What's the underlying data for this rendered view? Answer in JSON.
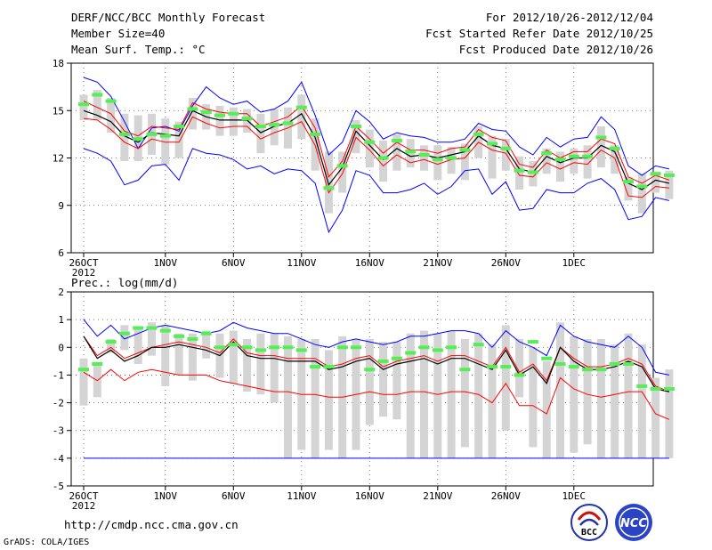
{
  "header": {
    "title": "DERF/NCC/BCC Monthly Forecast",
    "member_size": "Member Size=40",
    "variable": "Mean Surf. Temp.: °C",
    "period": "For 2012/10/26-2012/12/04",
    "started": "Fcst Started Refer Date 2012/10/25",
    "produced": "Fcst Produced Date 2012/10/26"
  },
  "footer": {
    "url": "http://cmdp.ncc.cma.gov.cn",
    "grads": "GrADS: COLA/IGES",
    "logo_bcc": "BCC",
    "logo_ncc": "NCC"
  },
  "colors": {
    "blue": "#0000ff",
    "red": "#ff0000",
    "black": "#000000",
    "green": "#55ee55",
    "box": "#d4d4d4",
    "grid": "#555555"
  },
  "chart_data": [
    {
      "type": "line",
      "title": "Mean Surf. Temp.: °C",
      "ylim": [
        6,
        18
      ],
      "yticks": [
        6,
        9,
        12,
        15,
        18
      ],
      "x_ticks": [
        {
          "day": 0,
          "label": "26OCT",
          "sub": "2012"
        },
        {
          "day": 6,
          "label": "1NOV"
        },
        {
          "day": 11,
          "label": "6NOV"
        },
        {
          "day": 16,
          "label": "11NOV"
        },
        {
          "day": 21,
          "label": "16NOV"
        },
        {
          "day": 26,
          "label": "21NOV"
        },
        {
          "day": 31,
          "label": "26NOV"
        },
        {
          "day": 36,
          "label": "1DEC"
        }
      ],
      "series": [
        {
          "name": "max",
          "color": "blue",
          "values": [
            17.1,
            16.8,
            15.9,
            14.3,
            12.6,
            13.9,
            14.0,
            13.7,
            15.3,
            16.5,
            15.8,
            15.4,
            15.6,
            14.9,
            15.1,
            15.6,
            16.8,
            14.7,
            12.2,
            13.0,
            15.0,
            14.3,
            13.2,
            13.6,
            13.4,
            13.3,
            13.0,
            13.0,
            13.2,
            14.2,
            13.8,
            13.7,
            12.7,
            12.2,
            13.3,
            12.7,
            13.2,
            13.3,
            14.6,
            13.8,
            11.5,
            10.9,
            11.5,
            11.3
          ]
        },
        {
          "name": "upper",
          "color": "red",
          "values": [
            15.6,
            15.2,
            14.8,
            13.7,
            13.4,
            14.0,
            13.9,
            13.8,
            15.5,
            15.1,
            14.9,
            14.8,
            14.8,
            14.0,
            14.3,
            14.6,
            15.3,
            13.9,
            10.8,
            11.8,
            14.0,
            13.2,
            12.3,
            13.0,
            12.5,
            12.5,
            12.3,
            12.6,
            12.7,
            13.8,
            13.3,
            13.1,
            11.6,
            11.4,
            12.5,
            12.0,
            12.4,
            12.4,
            13.2,
            12.9,
            10.8,
            10.4,
            10.9,
            10.6
          ]
        },
        {
          "name": "median",
          "color": "black",
          "values": [
            15.0,
            14.7,
            14.3,
            13.4,
            13.0,
            13.6,
            13.5,
            13.4,
            15.0,
            14.6,
            14.4,
            14.4,
            14.4,
            13.6,
            14.0,
            14.2,
            14.8,
            13.3,
            10.3,
            11.4,
            13.7,
            12.8,
            11.9,
            12.6,
            12.1,
            12.2,
            12.0,
            12.2,
            12.4,
            13.4,
            12.8,
            12.6,
            11.3,
            11.1,
            12.1,
            11.7,
            12.0,
            12.0,
            12.8,
            12.4,
            10.4,
            10.0,
            10.6,
            10.4
          ]
        },
        {
          "name": "lower",
          "color": "red",
          "values": [
            14.5,
            14.4,
            13.8,
            13.0,
            12.6,
            13.2,
            13.0,
            13.0,
            14.6,
            14.2,
            13.9,
            14.0,
            14.0,
            13.2,
            13.6,
            13.9,
            14.3,
            12.8,
            9.8,
            11.0,
            13.3,
            12.5,
            11.5,
            12.2,
            11.7,
            11.9,
            11.6,
            11.9,
            12.0,
            13.0,
            12.5,
            12.3,
            10.9,
            10.8,
            11.7,
            11.3,
            11.7,
            11.6,
            12.5,
            12.0,
            9.6,
            9.5,
            10.2,
            10.1
          ]
        },
        {
          "name": "min",
          "color": "blue",
          "values": [
            12.6,
            12.3,
            11.8,
            10.3,
            10.6,
            11.5,
            11.6,
            10.6,
            12.6,
            12.3,
            12.2,
            11.9,
            11.3,
            11.5,
            11.0,
            11.3,
            11.2,
            10.4,
            7.3,
            8.7,
            11.2,
            10.9,
            9.8,
            9.8,
            10.0,
            10.4,
            9.7,
            10.2,
            11.2,
            11.3,
            9.7,
            10.5,
            8.7,
            8.8,
            10.0,
            9.8,
            9.8,
            10.4,
            10.7,
            10.0,
            8.1,
            8.3,
            9.5,
            9.3
          ]
        },
        {
          "name": "observed",
          "color": "green",
          "values": [
            15.4,
            16.0,
            15.6,
            13.5,
            13.2,
            13.5,
            13.4,
            14.0,
            15.1,
            14.9,
            14.7,
            14.8,
            14.5,
            14.0,
            14.1,
            14.2,
            15.2,
            13.5,
            10.1,
            11.5,
            14.0,
            13.0,
            12.0,
            13.1,
            12.4,
            12.2,
            11.9,
            12.0,
            12.5,
            13.5,
            12.9,
            12.6,
            11.2,
            11.1,
            12.3,
            11.9,
            12.1,
            12.1,
            13.3,
            12.6,
            10.5,
            10.2,
            11.0,
            10.9
          ]
        }
      ],
      "box_low": [
        14.4,
        14.4,
        13.6,
        11.8,
        11.8,
        12.2,
        11.6,
        12.0,
        13.8,
        13.8,
        13.4,
        13.4,
        13.6,
        12.3,
        12.8,
        12.6,
        13.2,
        11.2,
        8.5,
        9.8,
        12.3,
        11.4,
        10.5,
        11.2,
        11.4,
        11.2,
        10.6,
        11.0,
        10.6,
        12.0,
        10.7,
        11.2,
        10.0,
        10.2,
        11.0,
        10.5,
        11.0,
        10.7,
        11.4,
        11.0,
        9.3,
        8.5,
        9.8,
        9.4
      ],
      "box_high": [
        16.0,
        16.3,
        15.8,
        14.8,
        14.7,
        14.8,
        14.5,
        14.3,
        15.8,
        15.4,
        15.3,
        15.2,
        15.1,
        14.8,
        15.1,
        15.2,
        16.0,
        14.5,
        12.4,
        12.4,
        14.4,
        13.8,
        13.1,
        13.5,
        13.2,
        12.8,
        12.8,
        12.7,
        12.9,
        14.0,
        13.4,
        13.2,
        12.1,
        11.8,
        12.6,
        12.4,
        12.6,
        12.8,
        14.0,
        12.8,
        10.8,
        11.0,
        11.1,
        11.2
      ]
    },
    {
      "type": "line",
      "title": "Prec.: log(mm/d)",
      "ylim": [
        -5,
        2
      ],
      "yticks": [
        -5,
        -4,
        -3,
        -2,
        -1,
        0,
        1,
        2
      ],
      "x_ticks": [
        {
          "day": 0,
          "label": "26OCT",
          "sub": "2012"
        },
        {
          "day": 6,
          "label": "1NOV"
        },
        {
          "day": 11,
          "label": "6NOV"
        },
        {
          "day": 16,
          "label": "11NOV"
        },
        {
          "day": 21,
          "label": "16NOV"
        },
        {
          "day": 26,
          "label": "21NOV"
        },
        {
          "day": 31,
          "label": "26NOV"
        },
        {
          "day": 36,
          "label": "1DEC"
        }
      ],
      "series": [
        {
          "name": "max",
          "color": "blue",
          "values": [
            1.0,
            0.4,
            0.8,
            0.3,
            0.5,
            0.7,
            0.8,
            0.7,
            0.6,
            0.5,
            0.6,
            0.9,
            0.7,
            0.6,
            0.5,
            0.5,
            0.3,
            0.1,
            0.0,
            0.2,
            0.3,
            0.2,
            0.1,
            0.2,
            0.4,
            0.4,
            0.5,
            0.6,
            0.6,
            0.5,
            0.0,
            0.6,
            0.2,
            0.0,
            -0.3,
            0.8,
            0.4,
            0.2,
            0.1,
            0.0,
            0.4,
            0.0,
            -0.9,
            -1.0
          ]
        },
        {
          "name": "mean",
          "color": "red",
          "values": [
            0.4,
            -0.3,
            0.0,
            -0.4,
            -0.2,
            0.0,
            0.1,
            0.2,
            0.1,
            0.0,
            -0.2,
            0.3,
            -0.2,
            -0.3,
            -0.3,
            -0.4,
            -0.4,
            -0.4,
            -0.7,
            -0.6,
            -0.4,
            -0.3,
            -0.7,
            -0.5,
            -0.4,
            -0.3,
            -0.5,
            -0.3,
            -0.3,
            -0.5,
            -0.7,
            0.0,
            -0.9,
            -0.6,
            -1.2,
            0.0,
            -0.4,
            -0.7,
            -0.7,
            -0.6,
            -0.4,
            -0.6,
            -1.4,
            -1.6
          ]
        },
        {
          "name": "median",
          "color": "black",
          "values": [
            0.4,
            -0.4,
            -0.1,
            -0.5,
            -0.3,
            0.0,
            0.0,
            0.1,
            0.0,
            -0.1,
            -0.3,
            0.2,
            -0.3,
            -0.4,
            -0.4,
            -0.5,
            -0.5,
            -0.5,
            -0.8,
            -0.7,
            -0.5,
            -0.4,
            -0.8,
            -0.6,
            -0.5,
            -0.4,
            -0.6,
            -0.4,
            -0.4,
            -0.6,
            -0.8,
            -0.1,
            -1.0,
            -0.7,
            -1.3,
            0.0,
            -0.5,
            -0.8,
            -0.8,
            -0.7,
            -0.5,
            -0.7,
            -1.5,
            -1.6
          ]
        },
        {
          "name": "lower",
          "color": "red",
          "values": [
            -0.9,
            -1.2,
            -0.8,
            -1.2,
            -0.9,
            -0.8,
            -0.9,
            -1.0,
            -1.0,
            -1.0,
            -1.2,
            -1.3,
            -1.4,
            -1.5,
            -1.6,
            -1.6,
            -1.7,
            -1.7,
            -1.8,
            -1.8,
            -1.7,
            -1.6,
            -1.7,
            -1.7,
            -1.6,
            -1.6,
            -1.7,
            -1.6,
            -1.6,
            -1.7,
            -2.0,
            -1.3,
            -2.1,
            -2.1,
            -2.4,
            -1.1,
            -1.5,
            -1.7,
            -1.8,
            -1.7,
            -1.6,
            -1.6,
            -2.4,
            -2.6
          ]
        },
        {
          "name": "min",
          "color": "blue",
          "values": [
            -4.0,
            -4.0,
            -4.0,
            -4.0,
            -4.0,
            -4.0,
            -4.0,
            -4.0,
            -4.0,
            -4.0,
            -4.0,
            -4.0,
            -4.0,
            -4.0,
            -4.0,
            -4.0,
            -4.0,
            -4.0,
            -4.0,
            -4.0,
            -4.0,
            -4.0,
            -4.0,
            -4.0,
            -4.0,
            -4.0,
            -4.0,
            -4.0,
            -4.0,
            -4.0,
            -4.0,
            -4.0,
            -4.0,
            -4.0,
            -4.0,
            -4.0,
            -4.0,
            -4.0,
            -4.0,
            -4.0,
            -4.0,
            -4.0,
            -4.0,
            -4.0
          ]
        },
        {
          "name": "observed",
          "color": "green",
          "values": [
            -0.8,
            -0.6,
            0.2,
            0.5,
            0.7,
            0.7,
            0.6,
            0.4,
            0.3,
            0.5,
            0.0,
            0.1,
            0.0,
            -0.1,
            0.0,
            0.0,
            -0.1,
            -0.7,
            -0.7,
            0.0,
            0.0,
            -0.8,
            -0.5,
            -0.4,
            -0.2,
            0.0,
            -0.1,
            0.0,
            -0.8,
            0.1,
            -0.7,
            -0.7,
            -1.0,
            0.2,
            -0.4,
            -0.6,
            -0.7,
            -0.8,
            -0.8,
            -0.6,
            -0.6,
            -1.4,
            -1.5,
            -1.5
          ]
        }
      ],
      "box_low": [
        -2.1,
        -1.8,
        -0.2,
        -0.1,
        -0.6,
        -0.3,
        -1.4,
        -1.0,
        -1.2,
        -0.4,
        -1.1,
        -1.3,
        -1.6,
        -1.7,
        -2.0,
        -4.0,
        -3.7,
        -4.0,
        -3.7,
        -4.0,
        -3.7,
        -2.8,
        -2.5,
        -2.6,
        -4.0,
        -4.0,
        -4.0,
        -4.0,
        -3.6,
        -4.0,
        -4.0,
        -3.0,
        -1.8,
        -3.6,
        -4.0,
        -4.0,
        -3.8,
        -3.5,
        -4.0,
        -4.0,
        -4.0,
        -4.0,
        -4.0,
        -4.0
      ],
      "box_high": [
        -0.4,
        -0.6,
        0.3,
        0.8,
        0.7,
        0.9,
        0.8,
        0.5,
        0.5,
        0.6,
        0.5,
        0.6,
        0.3,
        0.5,
        0.5,
        0.4,
        0.3,
        0.3,
        -0.1,
        0.4,
        0.3,
        0.3,
        0.2,
        0.2,
        0.5,
        0.6,
        0.5,
        0.6,
        0.3,
        0.5,
        0.1,
        0.8,
        0.3,
        0.0,
        -0.5,
        0.9,
        0.4,
        0.3,
        0.3,
        0.1,
        0.5,
        0.1,
        -1.1,
        -0.8
      ]
    }
  ]
}
